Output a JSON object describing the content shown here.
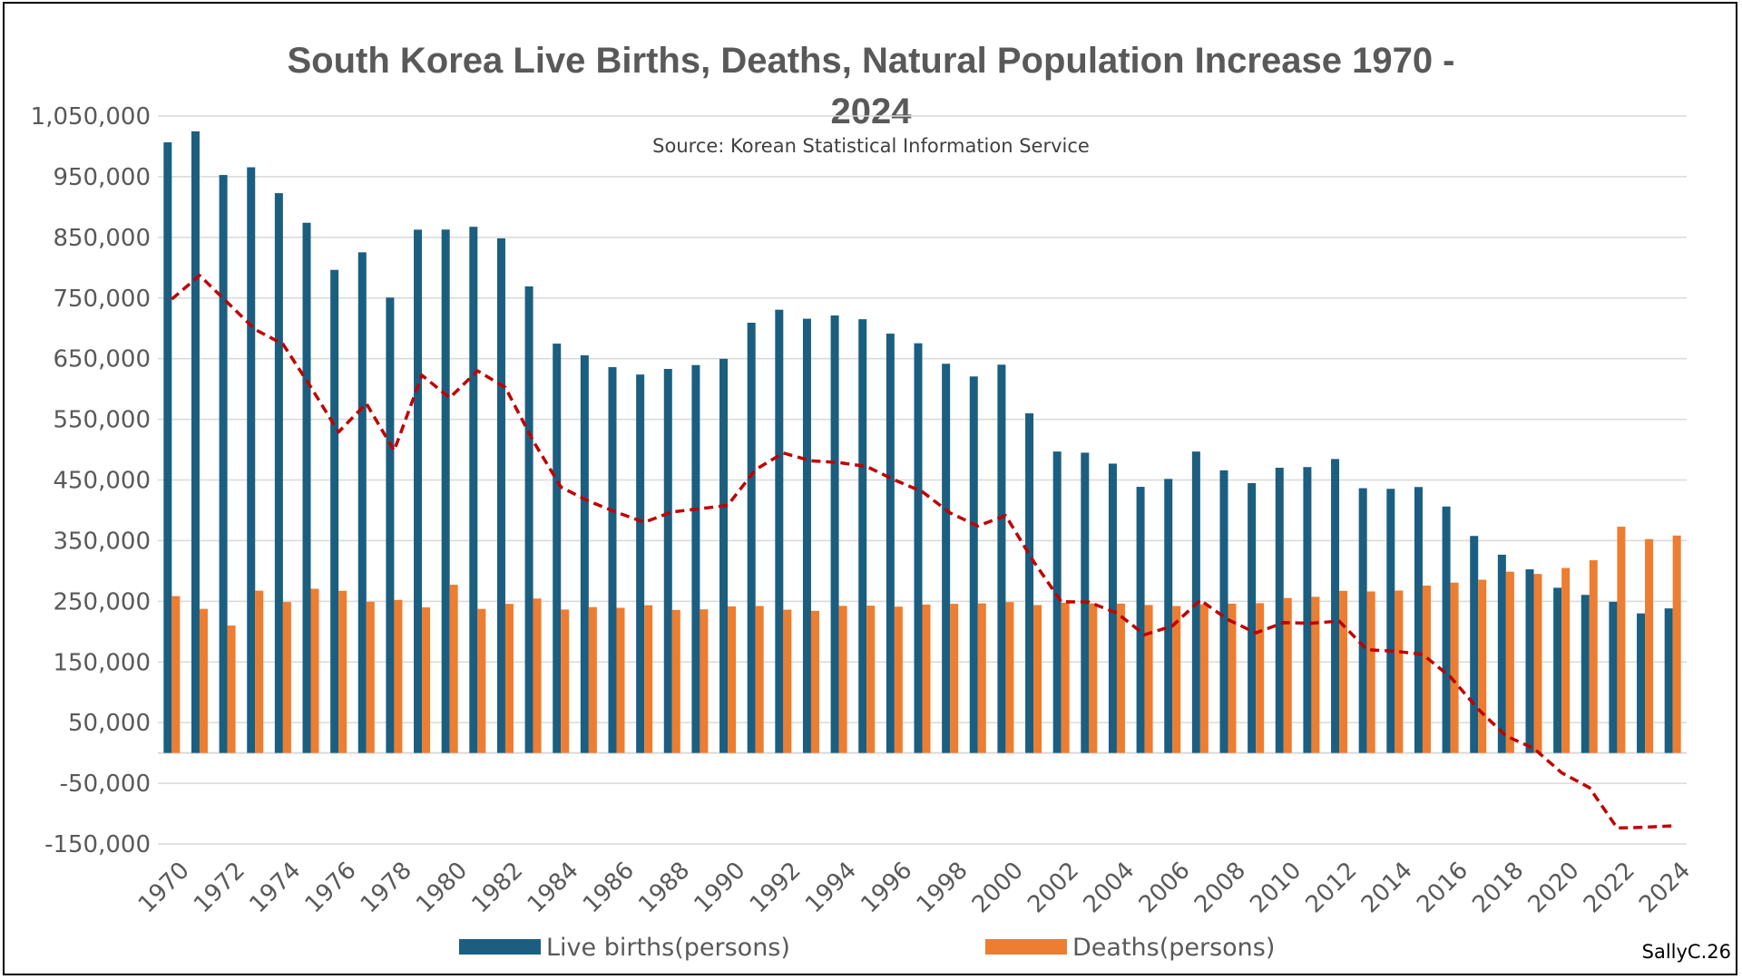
{
  "chart_data": {
    "type": "bar",
    "title_line1": "South Korea Live Births, Deaths, Natural Population Increase 1970 -",
    "title_line2": "2024",
    "subtitle": "Source: Korean Statistical Information Service",
    "credit": "SallyC.26",
    "ylim": [
      -150000,
      1050000
    ],
    "yticks": [
      "1,050,000",
      "950,000",
      "850,000",
      "750,000",
      "650,000",
      "550,000",
      "450,000",
      "350,000",
      "250,000",
      "150,000",
      "50,000",
      "-50,000",
      "-150,000"
    ],
    "ytick_values": [
      1050000,
      950000,
      850000,
      750000,
      650000,
      550000,
      450000,
      350000,
      250000,
      150000,
      50000,
      -50000,
      -150000
    ],
    "legend_position": "bottom",
    "categories": [
      1970,
      1971,
      1972,
      1973,
      1974,
      1975,
      1976,
      1977,
      1978,
      1979,
      1980,
      1981,
      1982,
      1983,
      1984,
      1985,
      1986,
      1987,
      1988,
      1989,
      1990,
      1991,
      1992,
      1993,
      1994,
      1995,
      1996,
      1997,
      1998,
      1999,
      2000,
      2001,
      2002,
      2003,
      2004,
      2005,
      2006,
      2007,
      2008,
      2009,
      2010,
      2011,
      2012,
      2013,
      2014,
      2015,
      2016,
      2017,
      2018,
      2019,
      2020,
      2021,
      2022,
      2023,
      2024
    ],
    "xtick_labels": [
      "1970",
      "1972",
      "1974",
      "1976",
      "1978",
      "1980",
      "1982",
      "1984",
      "1986",
      "1988",
      "1990",
      "1992",
      "1994",
      "1996",
      "1998",
      "2000",
      "2002",
      "2004",
      "2006",
      "2008",
      "2010",
      "2012",
      "2014",
      "2016",
      "2018",
      "2020",
      "2022",
      "2024"
    ],
    "series": [
      {
        "name": "Live births(persons)",
        "kind": "bar",
        "color": "#1b5e80",
        "values": [
          1006645,
          1024773,
          952780,
          965521,
          922823,
          874030,
          796331,
          825339,
          750728,
          862669,
          862835,
          867409,
          848312,
          769155,
          674793,
          655489,
          636019,
          623831,
          633092,
          639431,
          649738,
          709275,
          730678,
          715826,
          721185,
          715020,
          691226,
          675394,
          641594,
          620668,
          640089,
          559934,
          496911,
          495036,
          476958,
          438707,
          451759,
          496822,
          465892,
          444849,
          470171,
          471265,
          484550,
          436455,
          435435,
          438420,
          406243,
          357771,
          326822,
          302676,
          272337,
          260562,
          249186,
          230028,
          238300
        ]
      },
      {
        "name": "Deaths(persons)",
        "kind": "bar",
        "color": "#ed7d31",
        "values": [
          258589,
          237528,
          210071,
          267460,
          248807,
          270657,
          267300,
          249254,
          252298,
          239986,
          277284,
          237481,
          245767,
          254563,
          236445,
          240418,
          239256,
          243504,
          235779,
          236818,
          241616,
          242270,
          236162,
          234257,
          242439,
          242838,
          241149,
          244693,
          245825,
          246539,
          248740,
          243813,
          247524,
          246463,
          246220,
          243883,
          242266,
          244874,
          246113,
          246942,
          255405,
          257396,
          267221,
          266257,
          267692,
          275895,
          280827,
          285534,
          298820,
          295110,
          304948,
          317680,
          372939,
          352511,
          358400
        ]
      },
      {
        "name": "Natural population increase",
        "kind": "line",
        "color": "#c00000",
        "values": [
          748056,
          787245,
          742709,
          698061,
          674016,
          603373,
          529031,
          576085,
          498430,
          622683,
          585551,
          629928,
          602545,
          514592,
          438348,
          415071,
          396763,
          380327,
          397313,
          402613,
          408122,
          467005,
          494516,
          481569,
          478746,
          472182,
          450077,
          430701,
          395769,
          374129,
          391349,
          316121,
          249387,
          248573,
          230738,
          194824,
          209493,
          251948,
          219779,
          197907,
          214766,
          213869,
          217329,
          170198,
          167743,
          162525,
          125416,
          72237,
          28002,
          7566,
          -32611,
          -57118,
          -123753,
          -122483,
          -120100
        ]
      }
    ]
  }
}
